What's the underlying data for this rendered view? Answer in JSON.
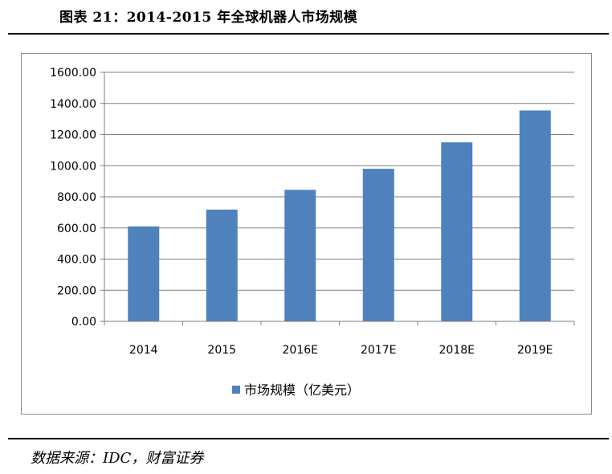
{
  "figure": {
    "title": "图表  21：2014-2015 年全球机器人市场规模",
    "source": "数据来源：IDC，财富证券"
  },
  "colors": {
    "bar": "#4F81BD",
    "grid": "#7f7f7f",
    "axis": "#7f7f7f"
  },
  "chart_data": {
    "type": "bar",
    "title": "",
    "xlabel": "",
    "ylabel": "",
    "categories": [
      "2014",
      "2015",
      "2016E",
      "2017E",
      "2018E",
      "2019E"
    ],
    "series": [
      {
        "name": "市场规模（亿美元）",
        "values": [
          610,
          718,
          845,
          980,
          1150,
          1355
        ]
      }
    ],
    "ylim": [
      0,
      1600
    ],
    "yticks": [
      "0.00",
      "200.00",
      "400.00",
      "600.00",
      "800.00",
      "1000.00",
      "1200.00",
      "1400.00",
      "1600.00"
    ],
    "ytick_values": [
      0,
      200,
      400,
      600,
      800,
      1000,
      1200,
      1400,
      1600
    ],
    "grid": true,
    "legend_position": "bottom"
  }
}
